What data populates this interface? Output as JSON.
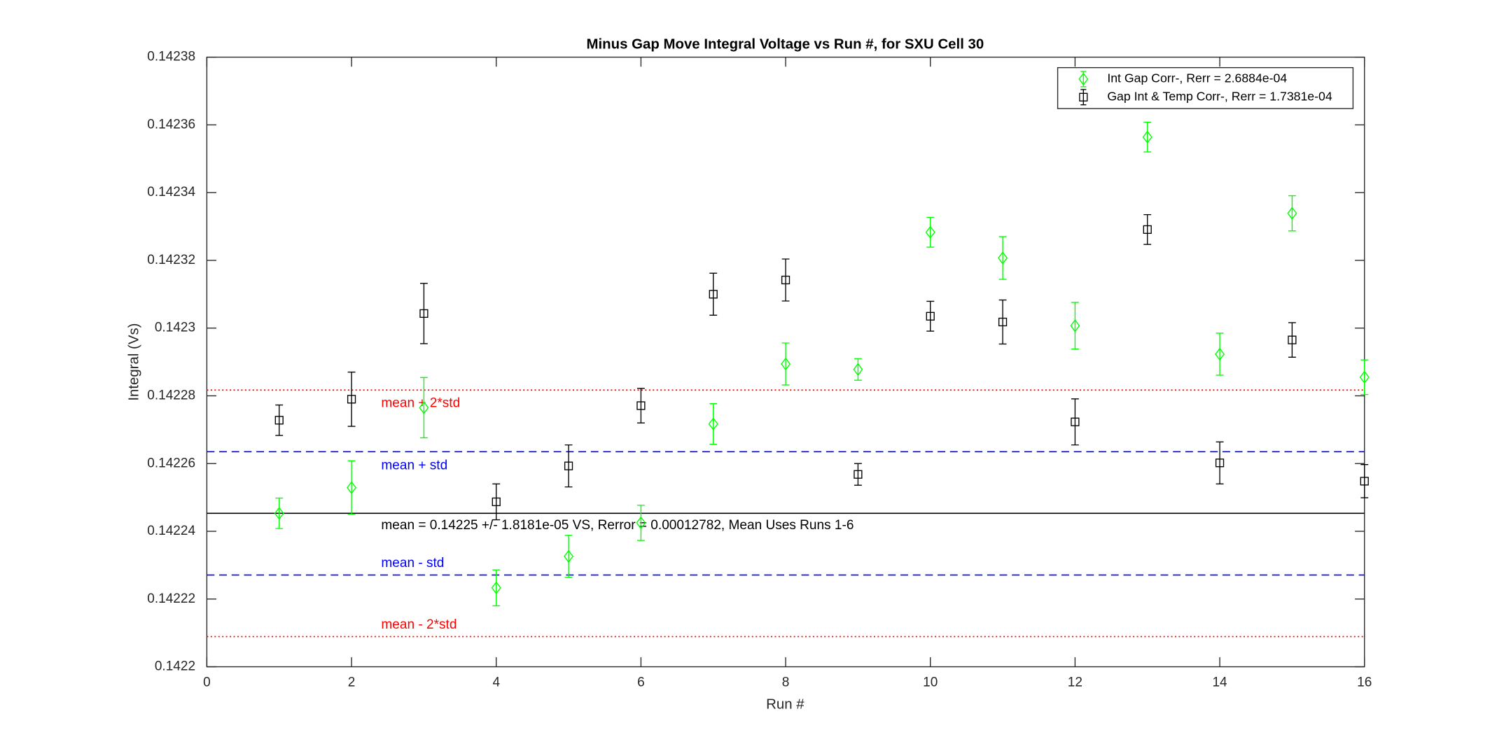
{
  "chart_data": {
    "type": "errorbar-scatter",
    "title": "Minus Gap Move Integral Voltage vs Run #, for SXU Cell 30",
    "x_label": "Run #",
    "y_label": "Integral (Vs)",
    "xlim": [
      0,
      16
    ],
    "xticks": [
      0,
      2,
      4,
      6,
      8,
      10,
      12,
      14,
      16
    ],
    "ylim": [
      0.1422,
      0.14238
    ],
    "yticks": [
      0.1422,
      0.14222,
      0.14224,
      0.14226,
      0.14228,
      0.1423,
      0.14232,
      0.14234,
      0.14236,
      0.14238
    ],
    "legend": "upper right",
    "x": [
      1,
      2,
      3,
      4,
      5,
      6,
      7,
      8,
      9,
      10,
      11,
      12,
      13,
      14,
      15,
      16
    ],
    "series": [
      {
        "name": "Int Gap Corr-, Rerr = 2.6884e-04",
        "color": "#00ff00",
        "marker": "diamond",
        "values": [
          0.1422453,
          0.1422529,
          0.1422765,
          0.1422233,
          0.1422326,
          0.1422425,
          0.1422717,
          0.1422894,
          0.1422878,
          0.1423283,
          0.1423207,
          0.1423007,
          0.1423564,
          0.1422923,
          0.1423339,
          0.1422855
        ],
        "errors": [
          4.5e-06,
          7.9e-06,
          8.9e-06,
          5.3e-06,
          6.2e-06,
          5.2e-06,
          6e-06,
          6.2e-06,
          3.2e-06,
          4.4e-06,
          6.3e-06,
          6.9e-06,
          4.4e-06,
          6.2e-06,
          5.2e-06,
          5.1e-06
        ]
      },
      {
        "name": "Gap Int & Temp Corr-, Rerr = 1.7381e-04",
        "color": "#000000",
        "marker": "square",
        "values": [
          0.1422728,
          0.142279,
          0.1423043,
          0.1422487,
          0.1422593,
          0.1422771,
          0.14231,
          0.1423142,
          0.1422568,
          0.1423035,
          0.1423018,
          0.1422723,
          0.1423291,
          0.1422602,
          0.1422965,
          0.1422548
        ],
        "errors": [
          4.5e-06,
          8e-06,
          8.9e-06,
          5.3e-06,
          6.2e-06,
          5.1e-06,
          6.2e-06,
          6.2e-06,
          3.2e-06,
          4.4e-06,
          6.5e-06,
          6.8e-06,
          4.4e-06,
          6.2e-06,
          5.1e-06,
          4.9e-06
        ]
      }
    ],
    "reference_lines": [
      {
        "label": "mean + 2*std",
        "value": 0.1422817,
        "color": "#ff0000",
        "style": "dotted"
      },
      {
        "label": "mean + std",
        "value": 0.1422635,
        "color": "#0000ff",
        "style": "dashed"
      },
      {
        "label": "mean = 0.14225 +/- 1.8181e-05 VS, Rerror = 0.00012782, Mean Uses Runs 1-6",
        "value": 0.1422453,
        "color": "#000000",
        "style": "solid"
      },
      {
        "label": "mean - std",
        "value": 0.1422271,
        "color": "#0000ff",
        "style": "dashed"
      },
      {
        "label": "mean - 2*std",
        "value": 0.1422089,
        "color": "#ff0000",
        "style": "dotted"
      }
    ]
  }
}
